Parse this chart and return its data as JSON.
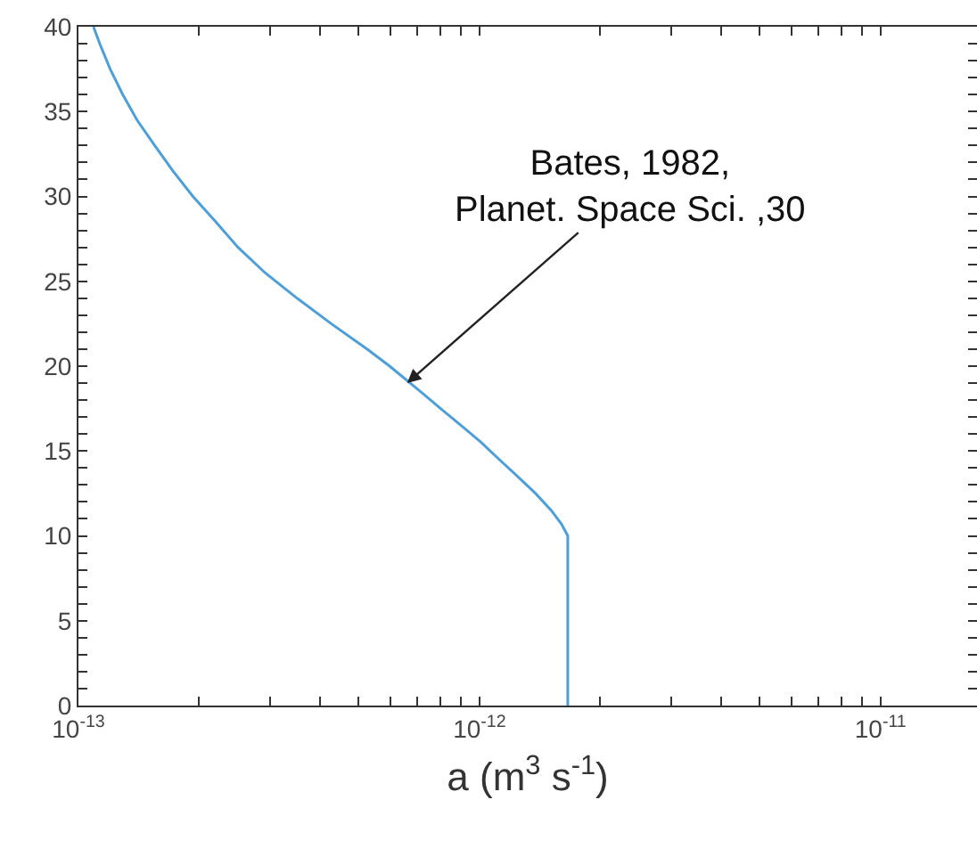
{
  "chart_data": {
    "type": "line",
    "xlabel": "a (m$^{3}$ s$^{-1}$)",
    "log": "x",
    "series": [
      {
        "color": "#4e9fd8",
        "x": [
          1.09e-13,
          1.13e-13,
          1.2e-13,
          1.29e-13,
          1.4e-13,
          1.55e-13,
          1.72e-13,
          1.93e-13,
          2.2e-13,
          2.5e-13,
          2.92e-13,
          3.51e-13,
          4.27e-13,
          5.25e-13,
          5.97e-13,
          7.13e-13,
          8e-13,
          9e-13,
          1.01e-12,
          1.12e-12,
          1.245e-12,
          1.38e-12,
          1.51e-12,
          1.6e-12,
          1.66e-12,
          1.66e-12
        ],
        "values": [
          40,
          39,
          37.5,
          36,
          34.5,
          33,
          31.5,
          30,
          28.5,
          27,
          25.5,
          24,
          22.5,
          21,
          20,
          18.5,
          17.5,
          16.5,
          15.5,
          14.5,
          13.5,
          12.5,
          11.5,
          10.7,
          10,
          0
        ]
      }
    ],
    "xlim": [
      1e-13,
      1.74e-11
    ],
    "xticks": [
      {
        "value": 1e-13,
        "label": "10$^{-13}$"
      },
      {
        "value": 2e-13,
        "label": null
      },
      {
        "value": 3e-13,
        "label": null
      },
      {
        "value": 4e-13,
        "label": null
      },
      {
        "value": 5e-13,
        "label": null
      },
      {
        "value": 6e-13,
        "label": null
      },
      {
        "value": 7e-13,
        "label": null
      },
      {
        "value": 8e-13,
        "label": null
      },
      {
        "value": 9e-13,
        "label": null
      },
      {
        "value": 1e-12,
        "label": "10$^{-12}$"
      },
      {
        "value": 2e-12,
        "label": null
      },
      {
        "value": 3e-12,
        "label": null
      },
      {
        "value": 4e-12,
        "label": null
      },
      {
        "value": 5e-12,
        "label": null
      },
      {
        "value": 6e-12,
        "label": null
      },
      {
        "value": 7e-12,
        "label": null
      },
      {
        "value": 8e-12,
        "label": null
      },
      {
        "value": 9e-12,
        "label": null
      },
      {
        "value": 1e-11,
        "label": "10$^{-11}$"
      }
    ],
    "ylim": [
      0,
      40
    ],
    "yticks": [
      0,
      {
        "value": 1,
        "label": null
      },
      {
        "value": 2,
        "label": null
      },
      {
        "value": 3,
        "label": null
      },
      {
        "value": 4,
        "label": null
      },
      5,
      {
        "value": 6,
        "label": null
      },
      {
        "value": 7,
        "label": null
      },
      {
        "value": 8,
        "label": null
      },
      {
        "value": 9,
        "label": null
      },
      10,
      {
        "value": 11,
        "label": null
      },
      {
        "value": 12,
        "label": null
      },
      {
        "value": 13,
        "label": null
      },
      {
        "value": 14,
        "label": null
      },
      15,
      {
        "value": 16,
        "label": null
      },
      {
        "value": 17,
        "label": null
      },
      {
        "value": 18,
        "label": null
      },
      {
        "value": 19,
        "label": null
      },
      20,
      {
        "value": 21,
        "label": null
      },
      {
        "value": 22,
        "label": null
      },
      {
        "value": 23,
        "label": null
      },
      {
        "value": 24,
        "label": null
      },
      25,
      {
        "value": 26,
        "label": null
      },
      {
        "value": 27,
        "label": null
      },
      {
        "value": 28,
        "label": null
      },
      {
        "value": 29,
        "label": null
      },
      30,
      {
        "value": 31,
        "label": null
      },
      {
        "value": 32,
        "label": null
      },
      {
        "value": 33,
        "label": null
      },
      {
        "value": 34,
        "label": null
      },
      35,
      {
        "value": 36,
        "label": null
      },
      {
        "value": 37,
        "label": null
      },
      {
        "value": 38,
        "label": null
      },
      {
        "value": 39,
        "label": null
      },
      40
    ],
    "annotations": [
      {
        "text": "Bates, 1982,\nPlanet. Space Sci. ,30",
        "x": 6.6e-13,
        "y": 19
      }
    ],
    "grid": false,
    "marker": "none",
    "line_style": "solid"
  }
}
